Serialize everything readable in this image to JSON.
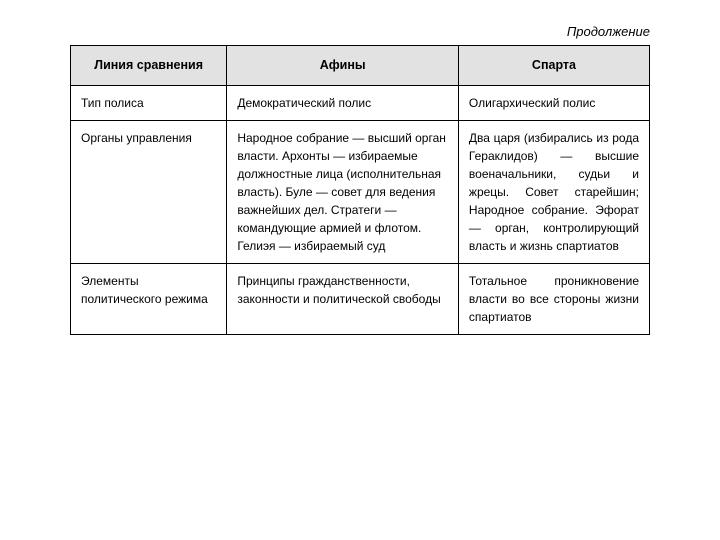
{
  "continuation_label": "Продолжение",
  "table": {
    "columns": [
      "Линия сравнения",
      "Афины",
      "Спарта"
    ],
    "rows": [
      {
        "comparison": "Тип полиса",
        "athens": "Демократический полис",
        "sparta": "Олигархический полис"
      },
      {
        "comparison": "Органы управления",
        "athens": "Народное собрание — высший орган власти. Архонты — избираемые должностные лица (исполнительная власть). Буле — совет для ведения важнейших дел. Стратеги — командующие армией и флотом. Гелиэя — избираемый суд",
        "sparta": "Два царя (избирались из рода Гераклидов) — высшие военачальники, судьи и жрецы. Совет старейшин; Народное собрание. Эфорат — орган, контролирующий власть и жизнь спартиатов"
      },
      {
        "comparison": "Элементы политического режима",
        "athens": "Принципы гражданственности, законности и политической свободы",
        "sparta": "Тотальное проникновение власти во все стороны жизни спартиатов"
      }
    ],
    "header_bg": "#e2e2e2",
    "border_color": "#000000",
    "font_size_body": 12,
    "font_size_header": 12.5
  }
}
